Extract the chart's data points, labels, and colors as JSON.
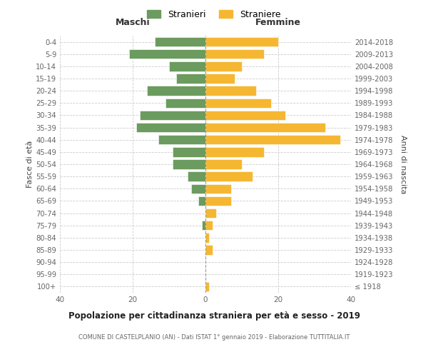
{
  "age_groups": [
    "100+",
    "95-99",
    "90-94",
    "85-89",
    "80-84",
    "75-79",
    "70-74",
    "65-69",
    "60-64",
    "55-59",
    "50-54",
    "45-49",
    "40-44",
    "35-39",
    "30-34",
    "25-29",
    "20-24",
    "15-19",
    "10-14",
    "5-9",
    "0-4"
  ],
  "birth_years": [
    "≤ 1918",
    "1919-1923",
    "1924-1928",
    "1929-1933",
    "1934-1938",
    "1939-1943",
    "1944-1948",
    "1949-1953",
    "1954-1958",
    "1959-1963",
    "1964-1968",
    "1969-1973",
    "1974-1978",
    "1979-1983",
    "1984-1988",
    "1989-1993",
    "1994-1998",
    "1999-2003",
    "2004-2008",
    "2009-2013",
    "2014-2018"
  ],
  "maschi": [
    0,
    0,
    0,
    0,
    0,
    1,
    0,
    2,
    4,
    5,
    9,
    9,
    13,
    19,
    18,
    11,
    16,
    8,
    10,
    21,
    14
  ],
  "femmine": [
    1,
    0,
    0,
    2,
    1,
    2,
    3,
    7,
    7,
    13,
    10,
    16,
    37,
    33,
    22,
    18,
    14,
    8,
    10,
    16,
    20
  ],
  "maschi_color": "#6b9b5e",
  "femmine_color": "#f5b731",
  "background_color": "#ffffff",
  "grid_color": "#cccccc",
  "title": "Popolazione per cittadinanza straniera per età e sesso - 2019",
  "subtitle": "COMUNE DI CASTELPLANIO (AN) - Dati ISTAT 1° gennaio 2019 - Elaborazione TUTTITALIA.IT",
  "header_left": "Maschi",
  "header_right": "Femmine",
  "ylabel_left": "Fasce di età",
  "ylabel_right": "Anni di nascita",
  "legend_stranieri": "Stranieri",
  "legend_straniere": "Straniere",
  "xlim": 40,
  "figsize": [
    6.0,
    5.0
  ],
  "dpi": 100
}
